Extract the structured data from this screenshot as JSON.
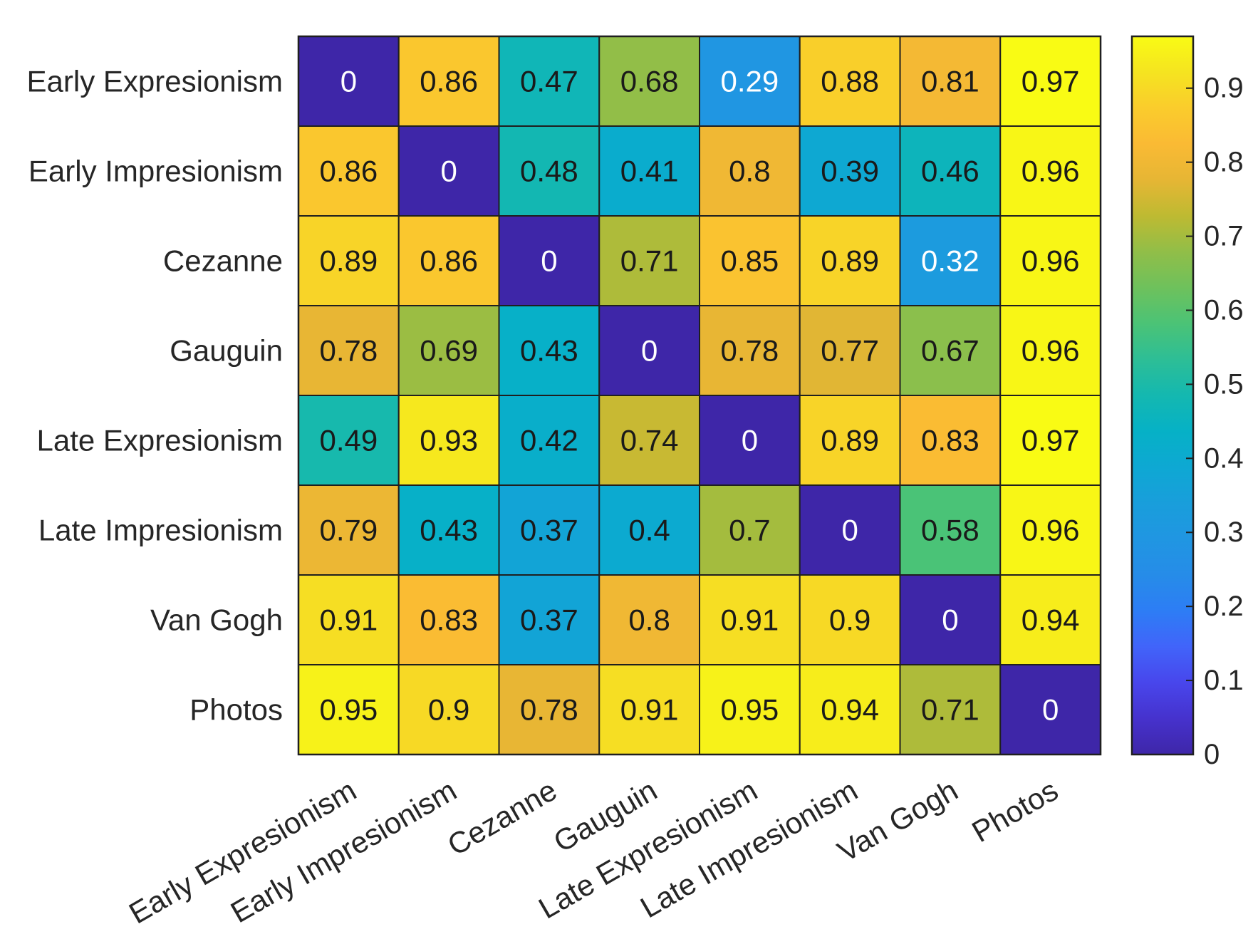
{
  "chart_data": {
    "type": "heatmap",
    "title": "",
    "xlabel": "",
    "ylabel": "",
    "x_categories": [
      "Early Expresionism",
      "Early Impresionism",
      "Cezanne",
      "Gauguin",
      "Late Expresionism",
      "Late Impresionism",
      "Van Gogh",
      "Photos"
    ],
    "y_categories": [
      "Early Expresionism",
      "Early Impresionism",
      "Cezanne",
      "Gauguin",
      "Late Expresionism",
      "Late Impresionism",
      "Van Gogh",
      "Photos"
    ],
    "values": [
      [
        0,
        0.86,
        0.47,
        0.68,
        0.29,
        0.88,
        0.81,
        0.97
      ],
      [
        0.86,
        0,
        0.48,
        0.41,
        0.8,
        0.39,
        0.46,
        0.96
      ],
      [
        0.89,
        0.86,
        0,
        0.71,
        0.85,
        0.89,
        0.32,
        0.96
      ],
      [
        0.78,
        0.69,
        0.43,
        0,
        0.78,
        0.77,
        0.67,
        0.96
      ],
      [
        0.49,
        0.93,
        0.42,
        0.74,
        0,
        0.89,
        0.83,
        0.97
      ],
      [
        0.79,
        0.43,
        0.37,
        0.4,
        0.7,
        0,
        0.58,
        0.96
      ],
      [
        0.91,
        0.83,
        0.37,
        0.8,
        0.91,
        0.9,
        0,
        0.94
      ],
      [
        0.95,
        0.9,
        0.78,
        0.91,
        0.95,
        0.94,
        0.71,
        0
      ]
    ],
    "colormap": "parula",
    "color_range": [
      0,
      0.97
    ],
    "colorbar": {
      "position": "right",
      "ticks": [
        0,
        0.1,
        0.2,
        0.3,
        0.4,
        0.5,
        0.6,
        0.7,
        0.8,
        0.9
      ]
    },
    "grid": false
  },
  "style_colors": {
    "background": "#ffffff",
    "cell_border": "#1f1f1f",
    "axis_text": "#262626",
    "cell_text_dark": "#1a1a1a",
    "cell_text_light": "#ffffff"
  }
}
